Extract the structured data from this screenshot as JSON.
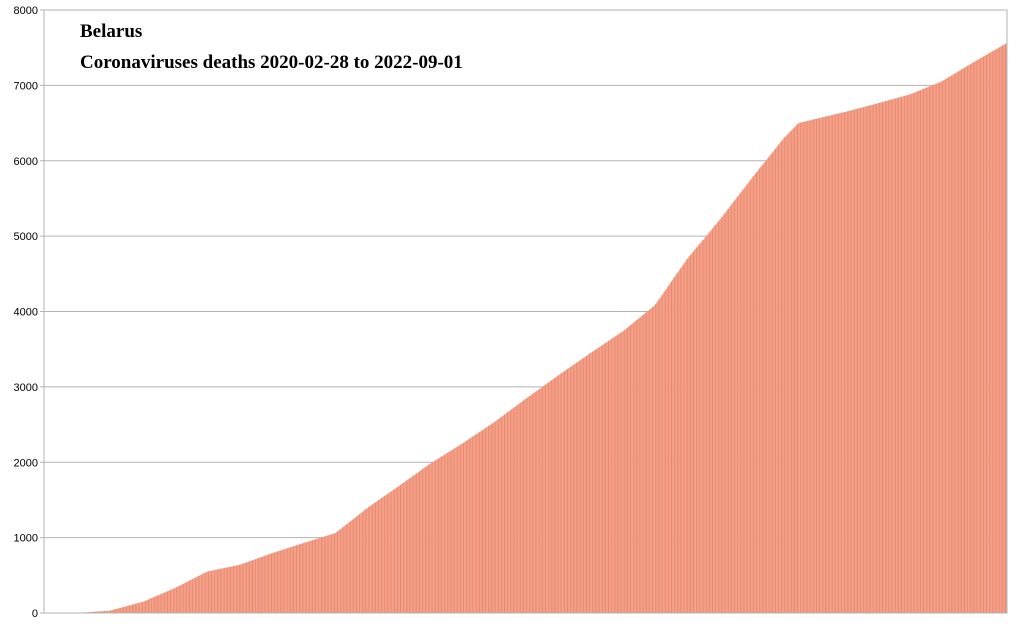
{
  "chart_data": {
    "type": "bar",
    "title": "Belarus",
    "subtitle": "Coronaviruses deaths 2020-02-28 to 2022-09-01",
    "xlabel": "",
    "ylabel": "",
    "ylim": [
      0,
      8000
    ],
    "yticks": [
      "0",
      "1000",
      "2000",
      "3000",
      "4000",
      "5000",
      "6000",
      "7000",
      "8000"
    ],
    "grid": true,
    "legend": "none",
    "start_date": "2020-02-28",
    "end_date": "2022-09-01",
    "bar_color": "#f4a088",
    "bar_edge_color": "#e98a70",
    "grid_color": "#b3b3b3",
    "series": [
      {
        "values_by_date": [
          [
            "2020-02-28",
            0
          ],
          [
            "2020-03-28",
            0
          ],
          [
            "2020-04-30",
            30
          ],
          [
            "2020-06-01",
            150
          ],
          [
            "2020-07-01",
            330
          ],
          [
            "2020-08-01",
            550
          ],
          [
            "2020-09-01",
            640
          ],
          [
            "2020-10-01",
            790
          ],
          [
            "2020-11-01",
            930
          ],
          [
            "2020-12-01",
            1060
          ],
          [
            "2021-01-01",
            1400
          ],
          [
            "2021-02-01",
            1700
          ],
          [
            "2021-03-01",
            1980
          ],
          [
            "2021-04-01",
            2250
          ],
          [
            "2021-05-01",
            2530
          ],
          [
            "2021-06-01",
            2850
          ],
          [
            "2021-07-01",
            3150
          ],
          [
            "2021-08-01",
            3450
          ],
          [
            "2021-09-01",
            3740
          ],
          [
            "2021-10-01",
            4080
          ],
          [
            "2021-11-01",
            4700
          ],
          [
            "2021-12-01",
            5200
          ],
          [
            "2022-01-01",
            5760
          ],
          [
            "2022-02-01",
            6300
          ],
          [
            "2022-02-15",
            6500
          ],
          [
            "2022-04-01",
            6650
          ],
          [
            "2022-05-01",
            6760
          ],
          [
            "2022-06-01",
            6880
          ],
          [
            "2022-07-01",
            7050
          ],
          [
            "2022-08-01",
            7310
          ],
          [
            "2022-09-01",
            7560
          ]
        ]
      }
    ]
  }
}
